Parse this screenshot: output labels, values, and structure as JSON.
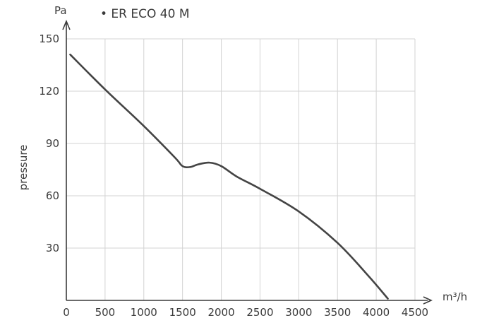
{
  "chart_data": {
    "type": "line",
    "title": "• ER ECO 40 M",
    "xlabel": "m³/h",
    "ylabel": "pressure",
    "yunit": "Pa",
    "xlim": [
      0,
      4500
    ],
    "ylim": [
      0,
      150
    ],
    "x_ticks": [
      0,
      500,
      1000,
      1500,
      2000,
      2500,
      3000,
      3500,
      4000,
      4500
    ],
    "y_ticks": [
      30,
      60,
      90,
      120,
      150
    ],
    "grid": true,
    "series": [
      {
        "x": [
          50,
          500,
          1000,
          1400,
          1500,
          1600,
          1700,
          1850,
          2000,
          2200,
          2500,
          3000,
          3500,
          3900,
          4150
        ],
        "y": [
          141,
          121,
          100,
          82,
          77,
          76.5,
          78,
          79,
          77,
          71,
          64,
          51,
          33,
          14,
          1
        ]
      }
    ]
  }
}
